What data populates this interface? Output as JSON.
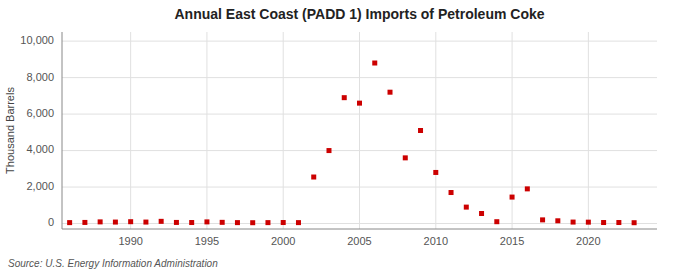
{
  "chart_data": {
    "type": "scatter",
    "title": "Annual East Coast (PADD 1) Imports of Petroleum Coke",
    "ylabel": "Thousand Barrels",
    "source": "Source: U.S. Energy Information Administration",
    "color": "#cc0000",
    "marker": "square",
    "grid": true,
    "xlim": [
      1985.5,
      2024.5
    ],
    "ylim": [
      -300,
      10500
    ],
    "xticks": [
      1990,
      1995,
      2000,
      2005,
      2010,
      2015,
      2020
    ],
    "yticks": [
      0,
      {
        "value": 2000,
        "label": "2,000"
      },
      {
        "value": 4000,
        "label": "4,000"
      },
      {
        "value": 6000,
        "label": "6,000"
      },
      {
        "value": 8000,
        "label": "8,000"
      },
      {
        "value": 10000,
        "label": "10,000"
      }
    ],
    "x": [
      1986,
      1987,
      1988,
      1989,
      1990,
      1991,
      1992,
      1993,
      1994,
      1995,
      1996,
      1997,
      1998,
      1999,
      2000,
      2001,
      2002,
      2003,
      2004,
      2005,
      2006,
      2007,
      2008,
      2009,
      2010,
      2011,
      2012,
      2013,
      2014,
      2015,
      2016,
      2017,
      2018,
      2019,
      2020,
      2021,
      2022,
      2023
    ],
    "values": [
      50,
      60,
      90,
      80,
      100,
      80,
      120,
      60,
      55,
      90,
      65,
      50,
      45,
      50,
      55,
      50,
      2550,
      4000,
      6900,
      6600,
      8800,
      7200,
      3600,
      5100,
      2800,
      1700,
      900,
      550,
      100,
      1450,
      1900,
      200,
      150,
      80,
      75,
      55,
      55,
      45
    ]
  }
}
